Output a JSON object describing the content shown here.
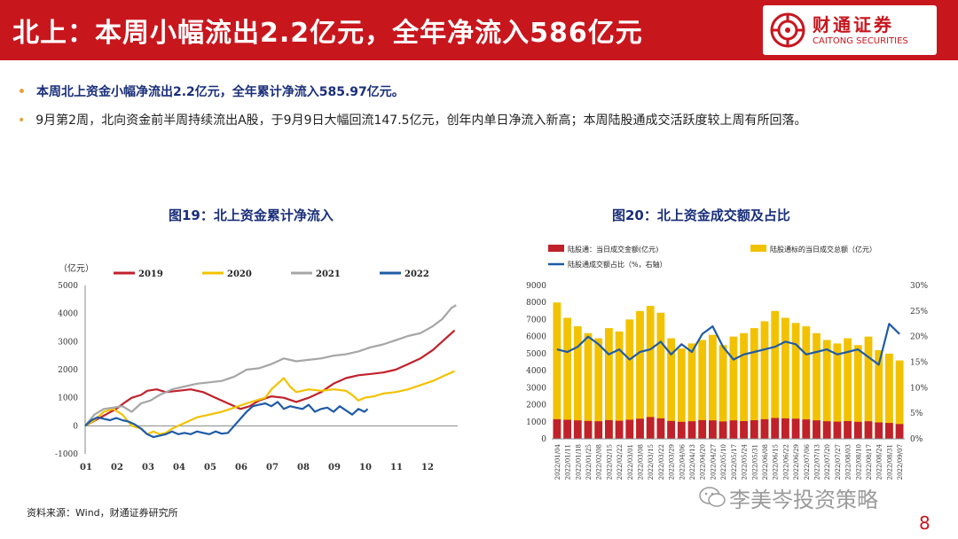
{
  "header": {
    "title": "北上：本周小幅流出2.2亿元，全年净流入586亿元",
    "logo_cn": "财通证券",
    "logo_en": "CAITONG SECURITIES",
    "brand_color": "#c8161d"
  },
  "bullets": [
    "本周北上资金小幅净流出2.2亿元，全年累计净流入585.97亿元。",
    "9月第2周，北向资金前半周持续流出A股，于9月9日大幅回流147.5亿元，创年内单日净流入新高；本周陆股通成交活跃度较上周有所回落。"
  ],
  "footer": {
    "source": "资料来源：Wind，财通证券研究所",
    "watermark": "李美岑投资策略",
    "page": "8"
  },
  "chart_data": [
    {
      "type": "line",
      "title": "图19：北上资金累计净流入",
      "ylabel": "（亿元）",
      "ylim": [
        -1000,
        5000
      ],
      "yticks": [
        "5000",
        "4000",
        "3000",
        "2000",
        "1000",
        "0",
        "-1000"
      ],
      "categories": [
        "01",
        "02",
        "03",
        "04",
        "05",
        "06",
        "07",
        "08",
        "09",
        "10",
        "11",
        "12"
      ],
      "legend_position": "top",
      "series": [
        {
          "name": "2019",
          "color": "#c0212b",
          "x": [
            0,
            0.5,
            1.0,
            1.3,
            1.5,
            1.8,
            2.0,
            2.3,
            2.6,
            3.0,
            3.4,
            3.8,
            4.2,
            4.6,
            5.0,
            5.3,
            5.6,
            6.0,
            6.4,
            6.8,
            7.2,
            7.6,
            8.0,
            8.4,
            8.8,
            9.2,
            9.6,
            10.0,
            10.4,
            10.8,
            11.2,
            11.5,
            11.7,
            11.9
          ],
          "values": [
            0,
            300,
            600,
            850,
            1000,
            1100,
            1250,
            1300,
            1200,
            1250,
            1300,
            1200,
            1000,
            800,
            600,
            700,
            900,
            1050,
            1000,
            850,
            1000,
            1200,
            1500,
            1700,
            1800,
            1850,
            1900,
            2000,
            2200,
            2400,
            2700,
            3000,
            3200,
            3400
          ]
        },
        {
          "name": "2020",
          "color": "#f2c200",
          "x": [
            0,
            0.3,
            0.6,
            0.9,
            1.2,
            1.5,
            1.8,
            2.0,
            2.2,
            2.4,
            2.6,
            2.8,
            3.0,
            3.3,
            3.6,
            4.0,
            4.4,
            4.8,
            5.2,
            5.5,
            5.8,
            6.0,
            6.2,
            6.4,
            6.6,
            6.8,
            7.2,
            7.6,
            8.0,
            8.4,
            8.6,
            8.8,
            9.0,
            9.3,
            9.6,
            10.0,
            10.4,
            10.8,
            11.2,
            11.6,
            11.9
          ],
          "values": [
            0,
            200,
            500,
            600,
            400,
            0,
            -100,
            -300,
            -200,
            -300,
            -250,
            -100,
            0,
            150,
            300,
            400,
            500,
            650,
            800,
            900,
            1000,
            1300,
            1500,
            1700,
            1400,
            1200,
            1300,
            1250,
            1300,
            1250,
            1100,
            900,
            1000,
            1050,
            1150,
            1200,
            1300,
            1450,
            1600,
            1800,
            1950
          ]
        },
        {
          "name": "2021",
          "color": "#a6a6a6",
          "x": [
            0,
            0.3,
            0.6,
            0.9,
            1.2,
            1.5,
            1.8,
            2.1,
            2.4,
            2.8,
            3.2,
            3.6,
            4.0,
            4.4,
            4.8,
            5.2,
            5.6,
            6.0,
            6.4,
            6.8,
            7.2,
            7.6,
            8.0,
            8.4,
            8.8,
            9.2,
            9.6,
            10.0,
            10.4,
            10.8,
            11.2,
            11.5,
            11.8,
            11.95
          ],
          "values": [
            0,
            400,
            600,
            650,
            700,
            500,
            800,
            900,
            1100,
            1300,
            1400,
            1500,
            1550,
            1600,
            1750,
            2000,
            2050,
            2200,
            2400,
            2300,
            2350,
            2400,
            2500,
            2550,
            2650,
            2800,
            2900,
            3050,
            3200,
            3300,
            3550,
            3800,
            4200,
            4300
          ]
        },
        {
          "name": "2022",
          "color": "#1f5ba6",
          "x": [
            0,
            0.2,
            0.4,
            0.6,
            0.8,
            1.0,
            1.2,
            1.4,
            1.6,
            1.8,
            2.0,
            2.2,
            2.4,
            2.6,
            2.8,
            3.0,
            3.2,
            3.4,
            3.6,
            3.8,
            4.0,
            4.2,
            4.4,
            4.6,
            4.8,
            5.0,
            5.2,
            5.4,
            5.6,
            5.8,
            6.0,
            6.2,
            6.4,
            6.6,
            6.8,
            7.0,
            7.2,
            7.4,
            7.6,
            7.8,
            8.0,
            8.2,
            8.4,
            8.6,
            8.8,
            9.0,
            9.1
          ],
          "values": [
            0,
            200,
            300,
            250,
            200,
            280,
            200,
            150,
            50,
            -100,
            -300,
            -400,
            -350,
            -300,
            -200,
            -300,
            -250,
            -300,
            -200,
            -250,
            -300,
            -200,
            -280,
            -250,
            0,
            250,
            500,
            700,
            750,
            800,
            700,
            850,
            600,
            700,
            650,
            600,
            750,
            500,
            600,
            650,
            500,
            700,
            550,
            400,
            600,
            500,
            600
          ]
        }
      ]
    },
    {
      "type": "bar",
      "title": "图20：北上资金成交额及占比",
      "ylim": [
        0,
        9000
      ],
      "yticks": [
        "9000",
        "8000",
        "7000",
        "6000",
        "5000",
        "4000",
        "3000",
        "2000",
        "1000",
        "0"
      ],
      "y2lim": [
        0,
        30
      ],
      "y2ticks": [
        "30%",
        "25%",
        "20%",
        "15%",
        "10%",
        "5%",
        "0%"
      ],
      "categories": [
        "2022/01/04",
        "2022/01/11",
        "2022/01/18",
        "2022/01/25",
        "2022/02/08",
        "2022/02/15",
        "2022/02/22",
        "2022/03/01",
        "2022/03/08",
        "2022/03/15",
        "2022/03/22",
        "2022/03/29",
        "2022/04/06",
        "2022/04/13",
        "2022/04/20",
        "2022/04/27",
        "2022/05/10",
        "2022/05/17",
        "2022/05/24",
        "2022/05/31",
        "2022/06/08",
        "2022/06/15",
        "2022/06/22",
        "2022/06/29",
        "2022/07/06",
        "2022/07/13",
        "2022/07/20",
        "2022/07/27",
        "2022/08/03",
        "2022/08/10",
        "2022/08/17",
        "2022/08/24",
        "2022/08/31",
        "2022/09/07"
      ],
      "series": [
        {
          "name": "陆股通：当日成交金额(亿元)",
          "color": "#c0212b",
          "values": [
            1150,
            1120,
            1080,
            1050,
            1030,
            1100,
            1060,
            1120,
            1180,
            1280,
            1200,
            1050,
            1000,
            1030,
            1100,
            1080,
            1020,
            1080,
            1040,
            1090,
            1150,
            1220,
            1200,
            1180,
            1140,
            1080,
            1030,
            1010,
            1040,
            1000,
            1030,
            960,
            930,
            870
          ]
        },
        {
          "name": "陆股通标的当日成交总额（亿元）",
          "color": "#f2c200",
          "values": [
            8000,
            7100,
            6600,
            6200,
            5900,
            6500,
            6300,
            7000,
            7500,
            7800,
            7400,
            5900,
            5300,
            5600,
            5800,
            6100,
            5500,
            6000,
            6200,
            6500,
            6900,
            7500,
            7100,
            6800,
            6600,
            6200,
            5800,
            5600,
            5900,
            5500,
            6000,
            5200,
            5000,
            4600
          ]
        },
        {
          "name": "陆股通成交额占比（%，右轴）",
          "color": "#1f5ba6",
          "axis": "right",
          "values": [
            17.5,
            17.0,
            18.0,
            20.0,
            18.5,
            16.5,
            17.5,
            15.5,
            17.0,
            17.5,
            19.0,
            16.5,
            18.5,
            17.0,
            20.5,
            22.0,
            18.0,
            15.5,
            16.5,
            17.0,
            17.5,
            18.0,
            19.0,
            18.5,
            16.5,
            17.0,
            17.5,
            16.5,
            17.0,
            17.5,
            16.0,
            14.5,
            22.5,
            20.5
          ]
        }
      ]
    }
  ]
}
